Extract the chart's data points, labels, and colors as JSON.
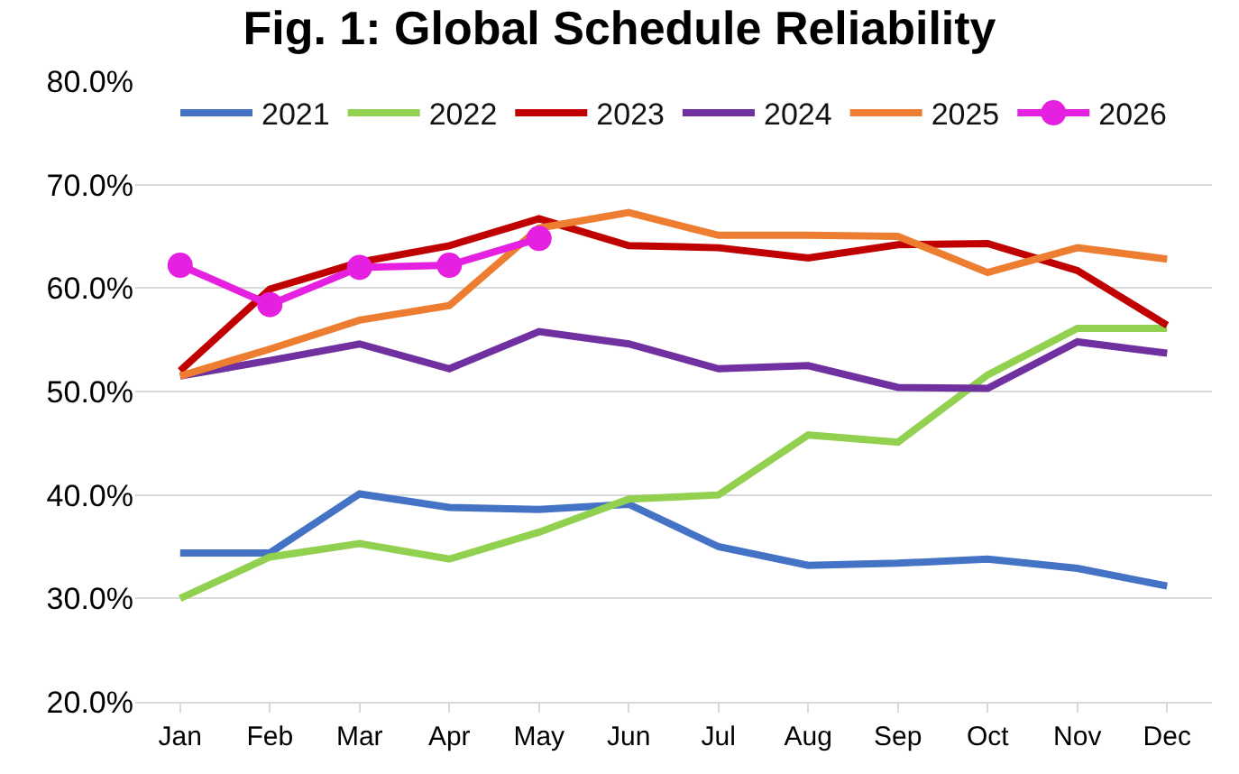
{
  "chart_data": {
    "type": "line",
    "title": "Fig. 1: Global Schedule Reliability",
    "categories": [
      "Jan",
      "Feb",
      "Mar",
      "Apr",
      "May",
      "Jun",
      "Jul",
      "Aug",
      "Sep",
      "Oct",
      "Nov",
      "Dec"
    ],
    "series": [
      {
        "name": "2021",
        "color": "#4472c4",
        "values": [
          34.4,
          34.4,
          40.1,
          38.8,
          38.6,
          39.1,
          35.0,
          33.2,
          33.4,
          33.8,
          32.9,
          31.2
        ]
      },
      {
        "name": "2022",
        "color": "#92d050",
        "values": [
          30.0,
          34.0,
          35.3,
          33.8,
          36.4,
          39.6,
          40.0,
          45.8,
          45.1,
          51.6,
          56.1,
          56.1
        ]
      },
      {
        "name": "2023",
        "color": "#c00000",
        "values": [
          52.0,
          59.9,
          62.5,
          64.1,
          66.7,
          64.1,
          63.9,
          62.9,
          64.2,
          64.3,
          61.7,
          56.4
        ]
      },
      {
        "name": "2024",
        "color": "#7030a0",
        "values": [
          51.5,
          53.0,
          54.6,
          52.2,
          55.8,
          54.6,
          52.2,
          52.5,
          50.4,
          50.3,
          54.8,
          53.7
        ]
      },
      {
        "name": "2025",
        "color": "#ed7d31",
        "values": [
          51.5,
          54.1,
          56.9,
          58.3,
          65.8,
          67.3,
          65.1,
          65.1,
          65.0,
          61.5,
          63.9,
          62.8
        ]
      },
      {
        "name": "2026",
        "color": "#e620e0",
        "marker": "circle",
        "values": [
          62.2,
          58.4,
          62.0,
          62.2,
          64.8,
          null,
          null,
          null,
          null,
          null,
          null,
          null
        ]
      }
    ],
    "ylim": [
      20,
      80
    ],
    "yticks": [
      {
        "value": 20,
        "label": "20.0%"
      },
      {
        "value": 30,
        "label": "30.0%"
      },
      {
        "value": 40,
        "label": "40.0%"
      },
      {
        "value": 50,
        "label": "50.0%"
      },
      {
        "value": 60,
        "label": "60.0%"
      },
      {
        "value": 70,
        "label": "70.0%"
      },
      {
        "value": 80,
        "label": "80.0%"
      }
    ],
    "grid": "y",
    "legend": "top"
  }
}
